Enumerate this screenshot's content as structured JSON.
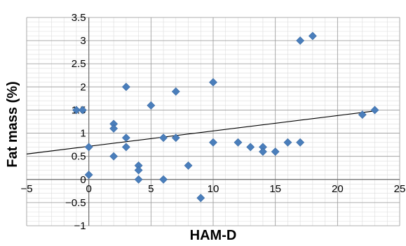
{
  "chart_data": {
    "type": "scatter",
    "xlabel": "HAM-D",
    "ylabel": "Fat mass (%)",
    "xlim": [
      -5,
      25
    ],
    "ylim": [
      -1,
      3.5
    ],
    "x_ticks": [
      -5,
      0,
      5,
      10,
      15,
      20,
      25
    ],
    "x_tick_labels": [
      "−5",
      "0",
      "5",
      "10",
      "15",
      "20",
      "25"
    ],
    "y_ticks": [
      -1,
      -0.5,
      0,
      0.5,
      1,
      1.5,
      2,
      2.5,
      3,
      3.5
    ],
    "y_tick_labels": [
      "−1",
      "−0.5",
      "0",
      "0.5",
      "1",
      "1.5",
      "2",
      "2.5",
      "3",
      "3.5"
    ],
    "grid": true,
    "minor_grid": true,
    "marker_color": "#4a7ebb",
    "trendline_color": "#000000",
    "series": [
      {
        "points": [
          [
            -1,
            1.5
          ],
          [
            -0.5,
            1.5
          ],
          [
            0,
            0.7
          ],
          [
            0,
            0.1
          ],
          [
            2,
            1.2
          ],
          [
            2,
            1.1
          ],
          [
            2,
            0.5
          ],
          [
            3,
            2.0
          ],
          [
            3,
            0.9
          ],
          [
            3,
            0.7
          ],
          [
            4,
            0.3
          ],
          [
            4,
            0.2
          ],
          [
            4,
            0.0
          ],
          [
            5,
            1.6
          ],
          [
            6,
            0.9
          ],
          [
            6,
            0.0
          ],
          [
            7,
            1.9
          ],
          [
            7,
            0.9
          ],
          [
            8,
            0.3
          ],
          [
            9,
            -0.4
          ],
          [
            10,
            2.1
          ],
          [
            10,
            0.8
          ],
          [
            12,
            0.8
          ],
          [
            13,
            0.7
          ],
          [
            14,
            0.7
          ],
          [
            14,
            0.6
          ],
          [
            15,
            0.6
          ],
          [
            16,
            0.8
          ],
          [
            17,
            3.0
          ],
          [
            17,
            0.8
          ],
          [
            18,
            3.1
          ],
          [
            22,
            1.4
          ],
          [
            23,
            1.5
          ]
        ]
      }
    ],
    "trendline": {
      "type": "linear",
      "from": [
        -5,
        0.55
      ],
      "to": [
        23,
        1.48
      ]
    }
  }
}
